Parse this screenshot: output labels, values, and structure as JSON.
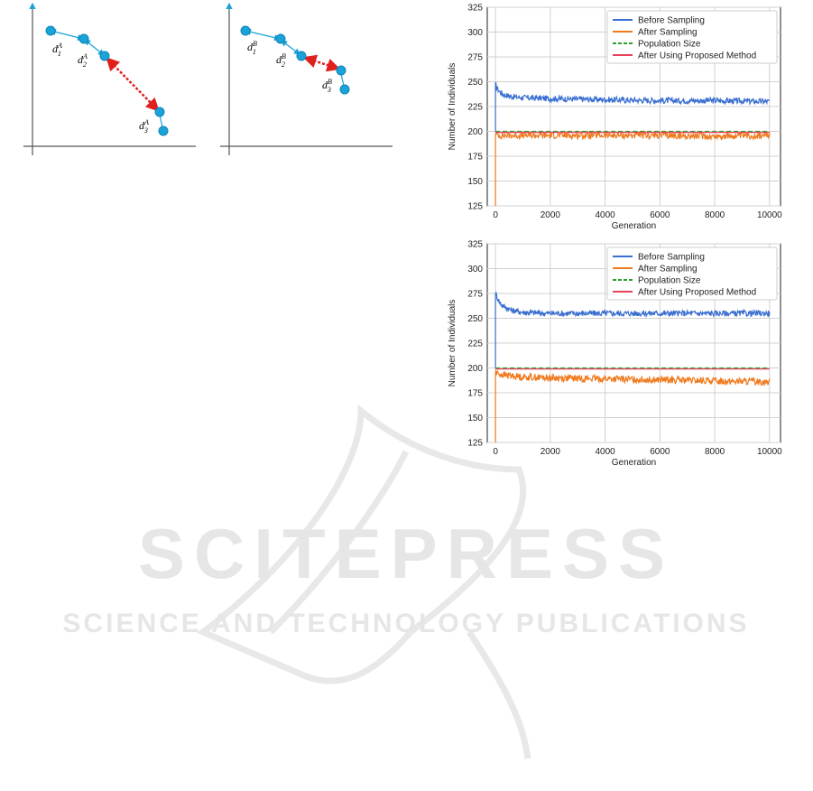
{
  "figure": {
    "left": {
      "labels": [
        "d_1^A",
        "d_2^A",
        "d_3^A"
      ]
    },
    "right": {
      "labels": [
        "d_1^B",
        "d_2^B",
        "d_3^B"
      ]
    }
  },
  "watermark": {
    "line1": "SCITEPRESS",
    "line2": "SCIENCE AND TECHNOLOGY PUBLICATIONS"
  },
  "colors": {
    "before": "#3a6fd0",
    "after": "#f07a1e",
    "population": "#2ca02c",
    "proposed": "#e8415a",
    "nodes": "#19a3d9",
    "link": "#e0201c",
    "watermark": "#e6e6e6"
  },
  "chart_data": [
    {
      "type": "line",
      "xlabel": "Generation",
      "ylabel": "Number of Individuals",
      "xlim": [
        -300,
        10400
      ],
      "ylim": [
        125,
        325
      ],
      "xticks": [
        0,
        2000,
        4000,
        6000,
        8000,
        10000
      ],
      "yticks": [
        125,
        150,
        175,
        200,
        225,
        250,
        275,
        300,
        325
      ],
      "grid": true,
      "legend_position": "top-right",
      "series": [
        {
          "name": "Before Sampling",
          "x": [
            0,
            50,
            150,
            300,
            600,
            1000,
            2000,
            4000,
            6000,
            8000,
            10000
          ],
          "values": [
            247,
            244,
            240,
            237,
            235,
            234,
            233,
            232,
            231,
            231,
            230
          ]
        },
        {
          "name": "After Sampling",
          "x": [
            0,
            50,
            150,
            300,
            600,
            1000,
            2000,
            4000,
            6000,
            8000,
            10000
          ],
          "values": [
            197,
            197,
            196,
            196,
            196,
            196,
            196,
            196,
            196,
            195,
            196
          ]
        },
        {
          "name": "Population Size",
          "x": [
            0,
            10000
          ],
          "values": [
            200,
            200
          ]
        },
        {
          "name": "After Using Proposed Method",
          "x": [
            0,
            10000
          ],
          "values": [
            199,
            199
          ]
        }
      ]
    },
    {
      "type": "line",
      "xlabel": "Generation",
      "ylabel": "Number of Individuals",
      "xlim": [
        -300,
        10400
      ],
      "ylim": [
        125,
        325
      ],
      "xticks": [
        0,
        2000,
        4000,
        6000,
        8000,
        10000
      ],
      "yticks": [
        125,
        150,
        175,
        200,
        225,
        250,
        275,
        300,
        325
      ],
      "grid": true,
      "legend_position": "top-right",
      "series": [
        {
          "name": "Before Sampling",
          "x": [
            0,
            50,
            150,
            300,
            600,
            1000,
            2000,
            4000,
            6000,
            8000,
            10000
          ],
          "values": [
            276,
            272,
            266,
            262,
            258,
            256,
            255,
            255,
            255,
            255,
            255
          ]
        },
        {
          "name": "After Sampling",
          "x": [
            0,
            50,
            150,
            300,
            600,
            1000,
            2000,
            4000,
            6000,
            8000,
            10000
          ],
          "values": [
            196,
            195,
            194,
            193,
            192,
            191,
            190,
            189,
            188,
            187,
            186
          ]
        },
        {
          "name": "Population Size",
          "x": [
            0,
            10000
          ],
          "values": [
            200,
            200
          ]
        },
        {
          "name": "After Using Proposed Method",
          "x": [
            0,
            10000
          ],
          "values": [
            199,
            199
          ]
        }
      ]
    }
  ]
}
